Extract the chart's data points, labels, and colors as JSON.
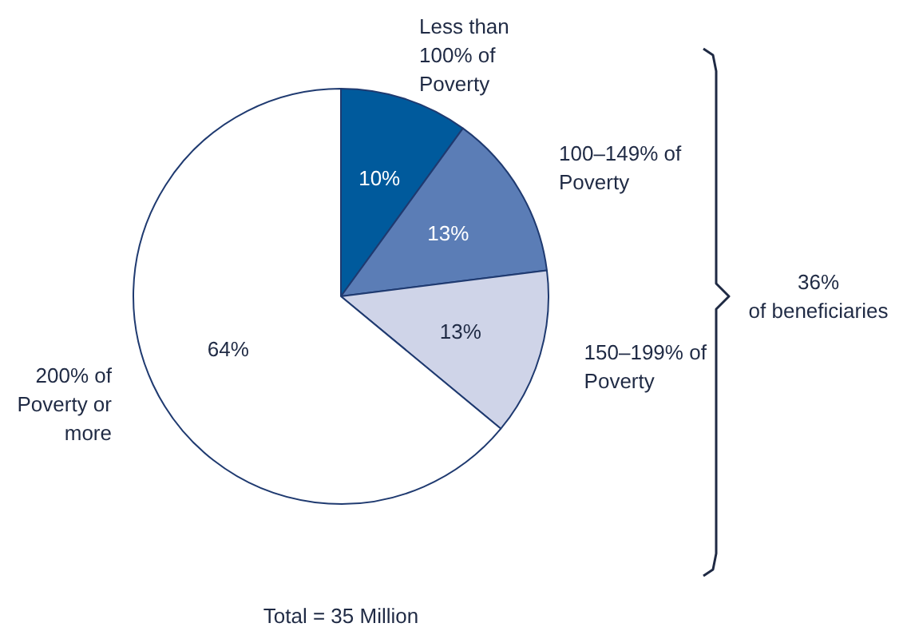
{
  "chart_data": {
    "type": "pie",
    "categories": [
      "Less than 100% of Poverty",
      "100–149% of Poverty",
      "150–199% of Poverty",
      "200% of Poverty or more"
    ],
    "values": [
      10,
      13,
      13,
      64
    ],
    "colors": [
      "#005a9c",
      "#5b7db6",
      "#cfd4e8",
      "#ffffff"
    ],
    "value_labels": [
      "10%",
      "13%",
      "13%",
      "64%"
    ],
    "annotations": [
      "36% of beneficiaries",
      "Total = 35 Million"
    ]
  }
}
